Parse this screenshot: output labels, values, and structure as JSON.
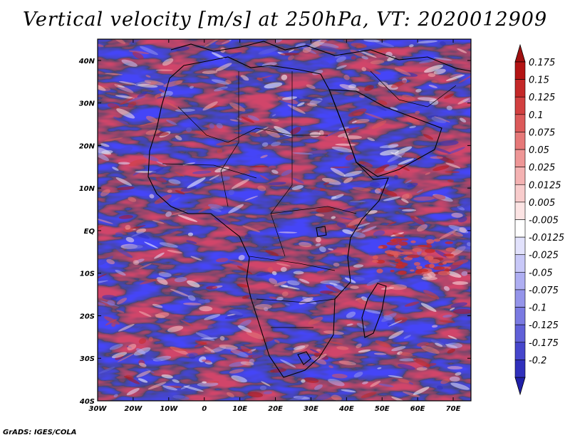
{
  "title": "Vertical velocity [m/s] at 250hPa, VT: 2020012909",
  "credit": "GrADS: IGES/COLA",
  "map": {
    "lon_range": [
      -30,
      75
    ],
    "lat_range": [
      -40,
      45
    ],
    "lat_ticks": [
      {
        "value": 40,
        "label": "40N"
      },
      {
        "value": 30,
        "label": "30N"
      },
      {
        "value": 20,
        "label": "20N"
      },
      {
        "value": 10,
        "label": "10N"
      },
      {
        "value": 0,
        "label": "EQ"
      },
      {
        "value": -10,
        "label": "10S"
      },
      {
        "value": -20,
        "label": "20S"
      },
      {
        "value": -30,
        "label": "30S"
      },
      {
        "value": -40,
        "label": "40S"
      }
    ],
    "lon_ticks": [
      {
        "value": -30,
        "label": "30W"
      },
      {
        "value": -20,
        "label": "20W"
      },
      {
        "value": -10,
        "label": "10W"
      },
      {
        "value": 0,
        "label": "0"
      },
      {
        "value": 10,
        "label": "10E"
      },
      {
        "value": 20,
        "label": "20E"
      },
      {
        "value": 30,
        "label": "30E"
      },
      {
        "value": 40,
        "label": "40E"
      },
      {
        "value": 50,
        "label": "50E"
      },
      {
        "value": 60,
        "label": "60E"
      },
      {
        "value": 70,
        "label": "70E"
      }
    ]
  },
  "colorbar": {
    "levels": [
      {
        "label": "0.175",
        "color": "#b41414"
      },
      {
        "label": "0.15",
        "color": "#c42828"
      },
      {
        "label": "0.125",
        "color": "#d24040"
      },
      {
        "label": "0.1",
        "color": "#dc5a5a"
      },
      {
        "label": "0.075",
        "color": "#e67878"
      },
      {
        "label": "0.05",
        "color": "#ee9696"
      },
      {
        "label": "0.025",
        "color": "#f4b2b2"
      },
      {
        "label": "0.0125",
        "color": "#f8cccc"
      },
      {
        "label": "0.005",
        "color": "#fce4e4"
      },
      {
        "label": "-0.005",
        "color": "#ffffff"
      },
      {
        "label": "-0.0125",
        "color": "#e2e2fc"
      },
      {
        "label": "-0.025",
        "color": "#c8c8f8"
      },
      {
        "label": "-0.05",
        "color": "#aeaef2"
      },
      {
        "label": "-0.075",
        "color": "#9494ea"
      },
      {
        "label": "-0.1",
        "color": "#7a7ae2"
      },
      {
        "label": "-0.125",
        "color": "#6060d8"
      },
      {
        "label": "-0.175",
        "color": "#4646cc"
      },
      {
        "label": "-0.2",
        "color": "#3030bc"
      }
    ],
    "top_color": "#a01010",
    "bottom_color": "#2020a8"
  }
}
